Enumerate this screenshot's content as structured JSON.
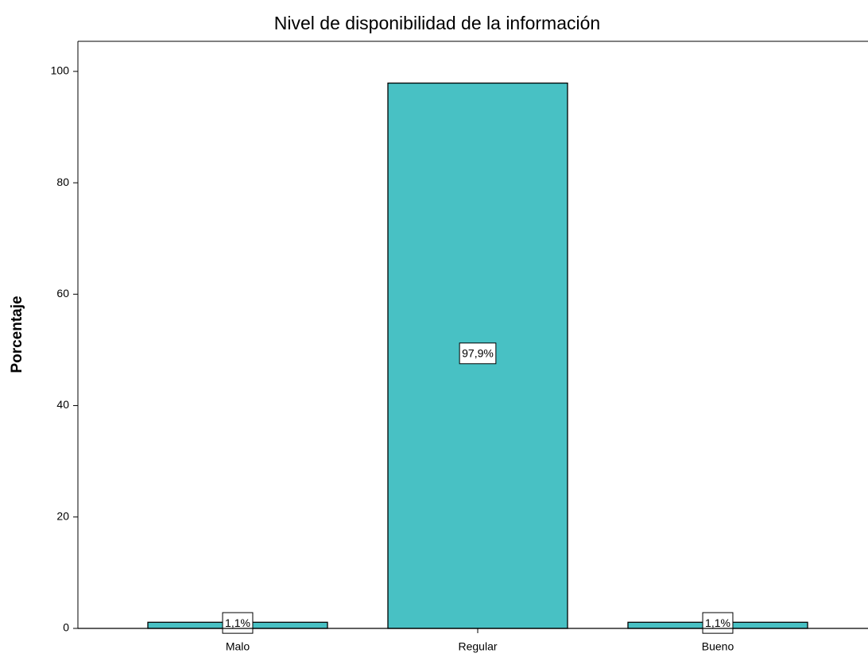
{
  "chart_data": {
    "type": "bar",
    "title": "Nivel de disponibilidad de la información",
    "y_label": "Porcentaje",
    "categories": [
      "Malo",
      "Regular",
      "Bueno"
    ],
    "values": [
      1.1,
      97.9,
      1.1
    ],
    "value_labels": [
      "1,1%",
      "97,9%",
      "1,1%"
    ],
    "color": "#48c1c4",
    "ylim": [
      0,
      105.4
    ],
    "yticks": [
      0,
      20,
      40,
      60,
      80,
      100
    ],
    "grid": false
  }
}
